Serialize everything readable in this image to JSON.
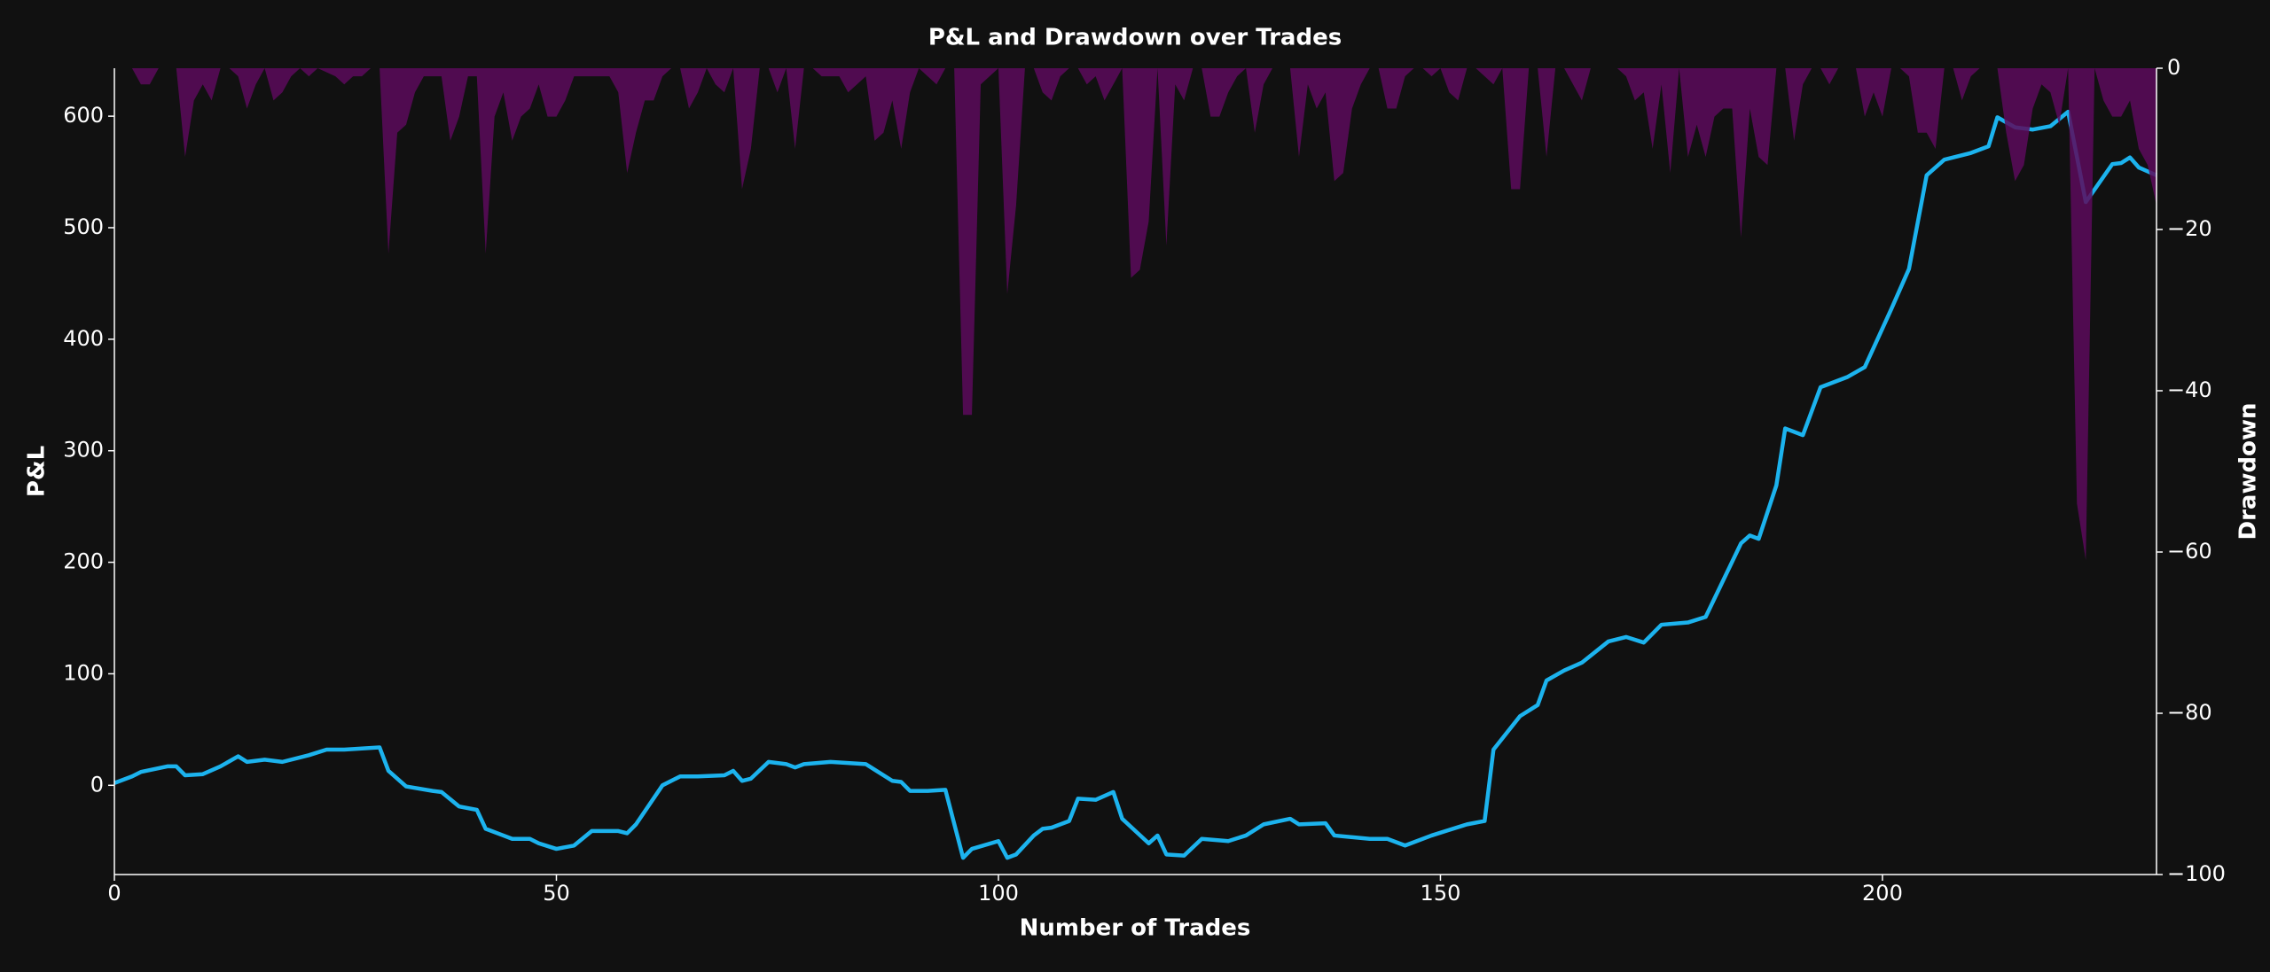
{
  "chart_data": {
    "type": "line-area",
    "title": "P&L and Drawdown over Trades",
    "x_label": "Number of Trades",
    "y_label": "P&L",
    "y2_label": "Drawdown",
    "xlim": [
      0,
      231
    ],
    "xticks": [
      0,
      50,
      100,
      150,
      200
    ],
    "ylim": [
      -80,
      643
    ],
    "yticks": [
      0,
      100,
      200,
      300,
      400,
      500,
      600
    ],
    "y2lim": [
      -100,
      0
    ],
    "y2ticks": [
      {
        "value": -100,
        "label": "−100"
      },
      {
        "value": -80,
        "label": "−80"
      },
      {
        "value": -60,
        "label": "−60"
      },
      {
        "value": -40,
        "label": "−40"
      },
      {
        "value": -20,
        "label": "−20"
      },
      0
    ],
    "series": [
      {
        "name": "P&L",
        "color": "#1cb3ee",
        "axis": "y",
        "x": [
          0,
          2,
          3,
          6,
          7,
          8,
          10,
          12,
          14,
          15,
          17,
          19,
          22,
          24,
          26,
          30,
          31,
          33,
          36,
          37,
          39,
          41,
          42,
          44,
          45,
          47,
          48,
          50,
          52,
          54,
          57,
          58,
          59,
          62,
          64,
          66,
          69,
          70,
          71,
          72,
          74,
          76,
          77,
          78,
          81,
          85,
          86,
          88,
          89,
          90,
          92,
          94,
          96,
          97,
          100,
          101,
          102,
          104,
          105,
          106,
          108,
          109,
          111,
          113,
          114,
          117,
          118,
          119,
          121,
          123,
          126,
          128,
          130,
          133,
          134,
          137,
          138,
          142,
          144,
          146,
          149,
          151,
          153,
          155,
          156,
          159,
          161,
          162,
          164,
          166,
          169,
          171,
          173,
          175,
          178,
          180,
          184,
          185,
          186,
          188,
          189,
          191,
          193,
          196,
          198,
          201,
          203,
          205,
          207,
          210,
          212,
          213,
          215,
          217,
          219,
          221,
          223,
          226,
          227,
          228,
          229,
          231
        ],
        "values": [
          2,
          8,
          12,
          17,
          17,
          9,
          10,
          17,
          26,
          21,
          23,
          21,
          27,
          32,
          32,
          34,
          13,
          -1,
          -5,
          -6,
          -19,
          -22,
          -39,
          -45,
          -48,
          -48,
          -52,
          -57,
          -54,
          -41,
          -41,
          -43,
          -35,
          0,
          8,
          8,
          9,
          13,
          4,
          6,
          21,
          19,
          16,
          19,
          21,
          19,
          14,
          4,
          3,
          -5,
          -5,
          -4,
          -65,
          -57,
          -50,
          -65,
          -62,
          -45,
          -39,
          -38,
          -32,
          -12,
          -13,
          -6,
          -30,
          -52,
          -45,
          -62,
          -63,
          -48,
          -50,
          -45,
          -35,
          -30,
          -35,
          -34,
          -45,
          -48,
          -48,
          -54,
          -45,
          -40,
          -35,
          -32,
          32,
          62,
          72,
          94,
          103,
          110,
          129,
          133,
          128,
          144,
          146,
          151,
          217,
          224,
          221,
          269,
          320,
          314,
          357,
          366,
          375,
          427,
          463,
          547,
          561,
          567,
          573,
          599,
          590,
          588,
          591,
          604,
          523,
          557,
          558,
          563,
          554,
          547
        ]
      },
      {
        "name": "Drawdown",
        "color": "#5c0a5c",
        "axis": "y2",
        "x": [
          0,
          2,
          3,
          4,
          5,
          7,
          8,
          9,
          10,
          11,
          12,
          13,
          14,
          15,
          16,
          17,
          18,
          19,
          20,
          21,
          22,
          23,
          25,
          26,
          27,
          28,
          29,
          30,
          31,
          32,
          33,
          34,
          35,
          36,
          37,
          38,
          39,
          40,
          41,
          42,
          43,
          44,
          45,
          46,
          47,
          48,
          49,
          50,
          51,
          52,
          53,
          54,
          55,
          56,
          57,
          58,
          59,
          60,
          61,
          62,
          63,
          64,
          65,
          66,
          67,
          68,
          69,
          70,
          71,
          72,
          73,
          74,
          75,
          76,
          77,
          78,
          79,
          80,
          81,
          82,
          83,
          84,
          85,
          86,
          87,
          88,
          89,
          90,
          91,
          92,
          93,
          94,
          95,
          96,
          97,
          98,
          99,
          100,
          101,
          102,
          103,
          104,
          105,
          106,
          107,
          108,
          109,
          110,
          111,
          112,
          113,
          114,
          115,
          116,
          117,
          118,
          119,
          120,
          121,
          122,
          123,
          124,
          125,
          126,
          127,
          128,
          129,
          130,
          131,
          132,
          133,
          134,
          135,
          136,
          137,
          138,
          139,
          140,
          141,
          142,
          143,
          144,
          145,
          146,
          147,
          148,
          149,
          150,
          151,
          152,
          153,
          154,
          155,
          156,
          157,
          158,
          159,
          160,
          161,
          162,
          163,
          164,
          165,
          166,
          167,
          168,
          169,
          170,
          171,
          172,
          173,
          174,
          175,
          176,
          177,
          178,
          179,
          180,
          181,
          182,
          183,
          184,
          185,
          186,
          187,
          188,
          189,
          190,
          191,
          192,
          193,
          194,
          195,
          196,
          197,
          198,
          199,
          200,
          201,
          202,
          203,
          204,
          205,
          206,
          207,
          208,
          209,
          210,
          211,
          212,
          213,
          214,
          215,
          216,
          217,
          218,
          219,
          220,
          221,
          222,
          223,
          224,
          225,
          226,
          227,
          228,
          229,
          230,
          231
        ],
        "values": [
          0,
          0,
          -2,
          -2,
          0,
          0,
          -11,
          -4,
          -2,
          -4,
          0,
          0,
          -1,
          -5,
          -2,
          0,
          -4,
          -3,
          -1,
          0,
          -1,
          0,
          -1,
          -2,
          -1,
          -1,
          0,
          0,
          -23,
          -8,
          -7,
          -3,
          -1,
          -1,
          -1,
          -9,
          -6,
          -1,
          -1,
          -23,
          -6,
          -3,
          -9,
          -6,
          -5,
          -2,
          -6,
          -6,
          -4,
          -1,
          -1,
          -1,
          -1,
          -1,
          -3,
          -13,
          -8,
          -4,
          -4,
          -1,
          0,
          0,
          -5,
          -3,
          0,
          -2,
          -3,
          0,
          -15,
          -10,
          0,
          0,
          -3,
          0,
          -10,
          0,
          0,
          -1,
          -1,
          -1,
          -3,
          -2,
          -1,
          -9,
          -8,
          -4,
          -10,
          -3,
          0,
          -1,
          -2,
          0,
          0,
          -43,
          -43,
          -2,
          -1,
          0,
          -28,
          -17,
          0,
          0,
          -3,
          -4,
          -1,
          0,
          0,
          -2,
          -1,
          -4,
          -2,
          0,
          -26,
          -25,
          -19,
          0,
          -22,
          -2,
          -4,
          0,
          0,
          -6,
          -6,
          -3,
          -1,
          0,
          -8,
          -2,
          0,
          0,
          0,
          -11,
          -2,
          -5,
          -3,
          -14,
          -13,
          -5,
          -2,
          0,
          0,
          -5,
          -5,
          -1,
          0,
          0,
          -1,
          0,
          -3,
          -4,
          0,
          0,
          -1,
          -2,
          0,
          -15,
          -15,
          0,
          0,
          -11,
          0,
          0,
          -2,
          -4,
          0,
          0,
          0,
          0,
          -1,
          -4,
          -3,
          -10,
          -2,
          -13,
          0,
          -11,
          -7,
          -11,
          -6,
          -5,
          -5,
          -21,
          -5,
          -11,
          -12,
          0,
          0,
          -9,
          -2,
          0,
          0,
          -2,
          0,
          0,
          0,
          -6,
          -3,
          -6,
          0,
          0,
          -1,
          -8,
          -8,
          -10,
          0,
          0,
          -4,
          -1,
          0,
          0,
          0,
          -8,
          -14,
          -12,
          -5,
          -2,
          -3,
          -7,
          0,
          -54,
          -61,
          0,
          -4,
          -6,
          -6,
          -4,
          -10,
          -12,
          -17
        ]
      }
    ]
  }
}
